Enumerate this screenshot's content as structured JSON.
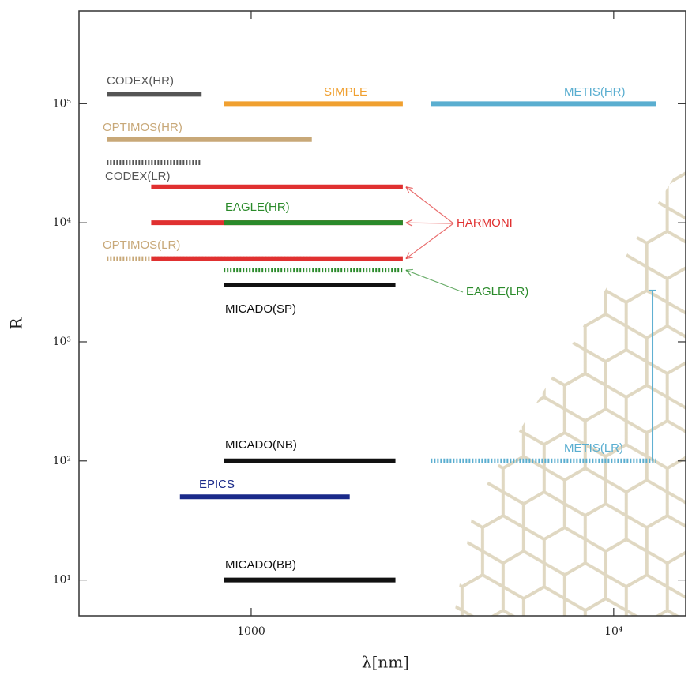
{
  "chart_data": {
    "type": "range",
    "x_label": "λ[nm]",
    "y_label": "R",
    "xscale": "log",
    "yscale": "log",
    "xlim": [
      335,
      15800
    ],
    "ylim": [
      5,
      600000
    ],
    "xticks": [
      1000,
      {
        "value": 10000,
        "label": "10⁴"
      }
    ],
    "yticks": [
      {
        "value": 10,
        "label": "10¹"
      },
      {
        "value": 100,
        "label": "10²"
      },
      {
        "value": 1000,
        "label": "10³"
      },
      {
        "value": 10000,
        "label": "10⁴"
      },
      {
        "value": 100000,
        "label": "10⁵"
      }
    ],
    "series": [
      {
        "name": "CODEX(HR)",
        "color": "#555555",
        "dashed": false,
        "segments": [
          {
            "x": [
              400,
              730
            ],
            "y": [
              120000,
              120000
            ]
          }
        ]
      },
      {
        "name": "SIMPLE",
        "color": "#f0a030",
        "dashed": false,
        "segments": [
          {
            "x": [
              840,
              2620
            ],
            "y": [
              100000,
              100000
            ]
          }
        ]
      },
      {
        "name": "METIS(HR)",
        "color": "#5aaed0",
        "dashed": false,
        "segments": [
          {
            "x": [
              3130,
              13100
            ],
            "y": [
              100000,
              100000
            ]
          }
        ]
      },
      {
        "name": "OPTIMOS(HR)",
        "color": "#c8a878",
        "dashed": false,
        "segments": [
          {
            "x": [
              400,
              1470
            ],
            "y": [
              50000,
              50000
            ]
          }
        ]
      },
      {
        "name": "CODEX(LR)",
        "color": "#555555",
        "dashed": true,
        "segments": [
          {
            "x": [
              400,
              730
            ],
            "y": [
              32000,
              32000
            ]
          }
        ]
      },
      {
        "name": "OPTIMOS(LR)",
        "color": "#c8a878",
        "dashed": true,
        "segments": [
          {
            "x": [
              400,
              1470
            ],
            "y": [
              5000,
              5000
            ]
          }
        ]
      },
      {
        "name": "HARMONI",
        "color": "#e03030",
        "dashed": false,
        "segments": [
          {
            "x": [
              530,
              2620
            ],
            "y": [
              20000,
              20000
            ]
          },
          {
            "x": [
              530,
              2620
            ],
            "y": [
              10000,
              10000
            ]
          },
          {
            "x": [
              530,
              2620
            ],
            "y": [
              5000,
              5000
            ]
          }
        ]
      },
      {
        "name": "EAGLE(HR)",
        "color": "#2a8a2a",
        "dashed": false,
        "segments": [
          {
            "x": [
              840,
              2620
            ],
            "y": [
              10000,
              10000
            ]
          }
        ]
      },
      {
        "name": "EAGLE(LR)",
        "color": "#2a8a2a",
        "dashed": true,
        "segments": [
          {
            "x": [
              840,
              2620
            ],
            "y": [
              4000,
              4000
            ]
          }
        ]
      },
      {
        "name": "MICADO(SP)",
        "color": "#111111",
        "dashed": false,
        "segments": [
          {
            "x": [
              840,
              2500
            ],
            "y": [
              3000,
              3000
            ]
          }
        ]
      },
      {
        "name": "MICADO(NB)",
        "color": "#111111",
        "dashed": false,
        "segments": [
          {
            "x": [
              840,
              2500
            ],
            "y": [
              100,
              100
            ]
          }
        ]
      },
      {
        "name": "EPICS",
        "color": "#1a2a8a",
        "dashed": false,
        "segments": [
          {
            "x": [
              636,
              1870
            ],
            "y": [
              50,
              50
            ]
          }
        ]
      },
      {
        "name": "MICADO(BB)",
        "color": "#111111",
        "dashed": false,
        "segments": [
          {
            "x": [
              840,
              2500
            ],
            "y": [
              10,
              10
            ]
          }
        ]
      },
      {
        "name": "METIS(LR)",
        "color": "#5aaed0",
        "dashed": true,
        "segments": [
          {
            "x": [
              3130,
              13100
            ],
            "y": [
              100,
              100
            ]
          },
          {
            "x": [
              12800,
              12800
            ],
            "y": [
              100,
              2700
            ]
          }
        ]
      }
    ]
  }
}
